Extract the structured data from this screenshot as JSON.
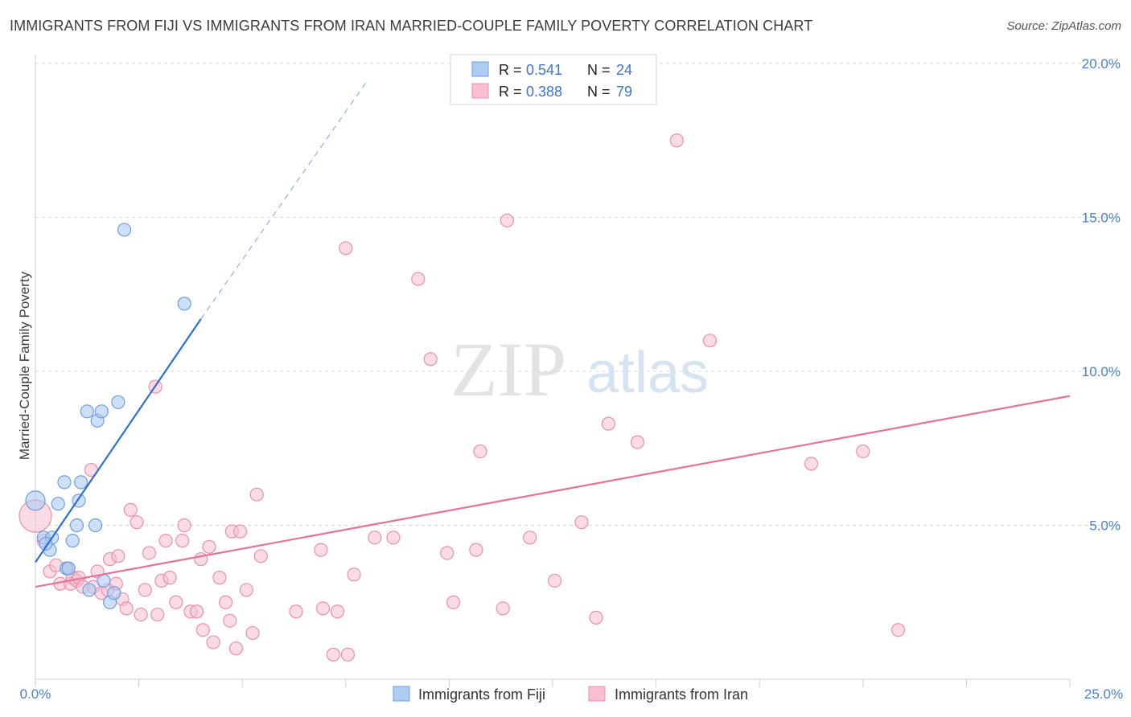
{
  "header": {
    "title": "IMMIGRANTS FROM FIJI VS IMMIGRANTS FROM IRAN MARRIED-COUPLE FAMILY POVERTY CORRELATION CHART",
    "source": "Source: ZipAtlas.com"
  },
  "watermark": {
    "zip": "ZIP",
    "atlas": "atlas"
  },
  "colors": {
    "fiji_fill": "#aecbf2",
    "fiji_stroke": "#6d9fe0",
    "fiji_line": "#2f6fd0",
    "iran_fill": "#f7bfd0",
    "iran_stroke": "#ec8fae",
    "iran_line": "#e8709a",
    "axis_text": "#4a7fd4",
    "grid": "#d8d8d8"
  },
  "legend": {
    "fiji": {
      "r_label": "R =",
      "r_value": "0.541",
      "n_label": "N =",
      "n_value": "24"
    },
    "iran": {
      "r_label": "R =",
      "r_value": "0.388",
      "n_label": "N =",
      "n_value": "79"
    }
  },
  "chart_data": {
    "type": "scatter",
    "title": "IMMIGRANTS FROM FIJI VS IMMIGRANTS FROM IRAN MARRIED-COUPLE FAMILY POVERTY CORRELATION CHART",
    "xlabel": "",
    "ylabel": "Married-Couple Family Poverty",
    "xlim": [
      0,
      25
    ],
    "ylim": [
      0,
      20
    ],
    "x_tick_labels": [
      "0.0%",
      "25.0%"
    ],
    "y_ticks": [
      5,
      10,
      15,
      20
    ],
    "y_tick_labels": [
      "5.0%",
      "10.0%",
      "15.0%",
      "20.0%"
    ],
    "grid": true,
    "legend_position": "bottom-center",
    "series": [
      {
        "name": "Immigrants from Fiji",
        "points": [
          [
            0.0,
            5.8
          ],
          [
            0.2,
            4.6
          ],
          [
            0.35,
            4.2
          ],
          [
            0.4,
            4.6
          ],
          [
            0.55,
            5.7
          ],
          [
            0.7,
            6.4
          ],
          [
            0.75,
            3.6
          ],
          [
            0.8,
            3.6
          ],
          [
            0.9,
            4.5
          ],
          [
            1.0,
            5.0
          ],
          [
            1.05,
            5.8
          ],
          [
            1.1,
            6.4
          ],
          [
            1.25,
            8.7
          ],
          [
            1.3,
            2.9
          ],
          [
            1.45,
            5.0
          ],
          [
            1.5,
            8.4
          ],
          [
            1.6,
            8.7
          ],
          [
            1.65,
            3.2
          ],
          [
            1.8,
            2.5
          ],
          [
            1.9,
            2.8
          ],
          [
            2.0,
            9.0
          ],
          [
            2.15,
            14.6
          ],
          [
            3.6,
            12.2
          ],
          [
            0.25,
            4.4
          ]
        ],
        "trend": {
          "x_start": 0.0,
          "y_start": 3.8,
          "x_solid_end": 4.0,
          "y_solid_end": 11.7,
          "x_dash_end": 8.0,
          "y_dash_end": 19.4
        }
      },
      {
        "name": "Immigrants from Iran",
        "points": [
          [
            0.0,
            5.3
          ],
          [
            0.2,
            4.5
          ],
          [
            0.35,
            3.5
          ],
          [
            0.5,
            3.7
          ],
          [
            0.6,
            3.1
          ],
          [
            0.8,
            3.6
          ],
          [
            0.85,
            3.1
          ],
          [
            0.9,
            3.3
          ],
          [
            1.0,
            3.2
          ],
          [
            1.05,
            3.3
          ],
          [
            1.15,
            3.0
          ],
          [
            1.35,
            6.8
          ],
          [
            1.4,
            3.0
          ],
          [
            1.5,
            3.5
          ],
          [
            1.6,
            2.8
          ],
          [
            1.75,
            2.9
          ],
          [
            1.8,
            3.9
          ],
          [
            1.95,
            3.1
          ],
          [
            2.0,
            4.0
          ],
          [
            2.1,
            2.6
          ],
          [
            2.2,
            2.3
          ],
          [
            2.3,
            5.5
          ],
          [
            2.45,
            5.1
          ],
          [
            2.55,
            2.1
          ],
          [
            2.65,
            2.9
          ],
          [
            2.75,
            4.1
          ],
          [
            2.9,
            9.5
          ],
          [
            2.95,
            2.1
          ],
          [
            3.05,
            3.2
          ],
          [
            3.15,
            4.5
          ],
          [
            3.25,
            3.3
          ],
          [
            3.4,
            2.5
          ],
          [
            3.55,
            4.5
          ],
          [
            3.6,
            5.0
          ],
          [
            3.75,
            2.2
          ],
          [
            3.9,
            2.2
          ],
          [
            4.0,
            3.9
          ],
          [
            4.05,
            1.6
          ],
          [
            4.2,
            4.3
          ],
          [
            4.3,
            1.2
          ],
          [
            4.45,
            3.3
          ],
          [
            4.6,
            2.5
          ],
          [
            4.7,
            1.9
          ],
          [
            4.75,
            4.8
          ],
          [
            4.85,
            1.0
          ],
          [
            4.95,
            4.8
          ],
          [
            5.1,
            2.9
          ],
          [
            5.25,
            1.5
          ],
          [
            5.35,
            6.0
          ],
          [
            5.45,
            4.0
          ],
          [
            6.3,
            2.2
          ],
          [
            6.9,
            4.2
          ],
          [
            6.95,
            2.3
          ],
          [
            7.2,
            0.8
          ],
          [
            7.3,
            2.2
          ],
          [
            7.5,
            14.0
          ],
          [
            7.55,
            0.8
          ],
          [
            7.7,
            3.4
          ],
          [
            8.2,
            4.6
          ],
          [
            8.65,
            4.6
          ],
          [
            9.25,
            13.0
          ],
          [
            9.55,
            10.4
          ],
          [
            9.95,
            4.1
          ],
          [
            10.1,
            2.5
          ],
          [
            10.65,
            4.2
          ],
          [
            10.75,
            7.4
          ],
          [
            11.3,
            2.3
          ],
          [
            11.4,
            14.9
          ],
          [
            11.95,
            4.6
          ],
          [
            12.55,
            3.2
          ],
          [
            13.2,
            5.1
          ],
          [
            13.55,
            2.0
          ],
          [
            13.85,
            8.3
          ],
          [
            14.55,
            7.7
          ],
          [
            15.5,
            17.5
          ],
          [
            16.3,
            11.0
          ],
          [
            18.75,
            7.0
          ],
          [
            20.0,
            7.4
          ],
          [
            20.85,
            1.6
          ]
        ],
        "trend": {
          "x_start": 0.0,
          "y_start": 3.0,
          "x_end": 25.0,
          "y_end": 9.2
        }
      }
    ]
  },
  "bottom_legend": {
    "fiji_label": "Immigrants from Fiji",
    "iran_label": "Immigrants from Iran"
  }
}
